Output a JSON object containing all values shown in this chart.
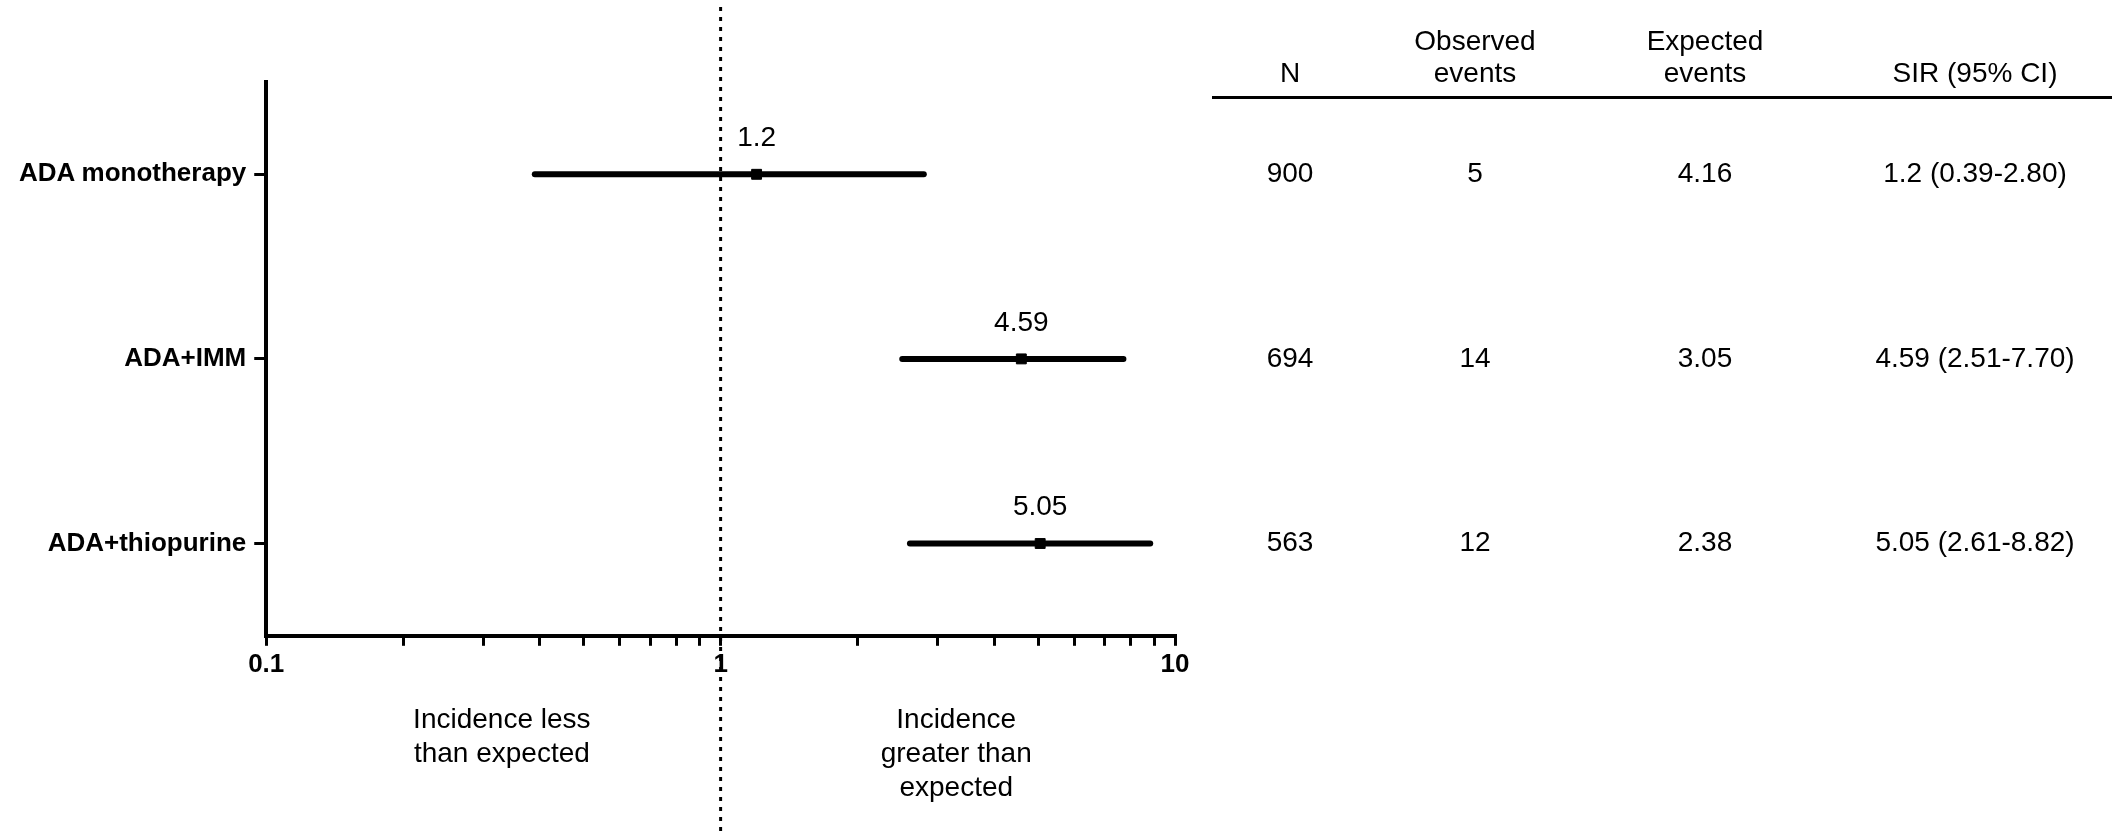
{
  "chart_data": {
    "type": "scatter",
    "orientation": "horizontal",
    "log": "x",
    "categories": [
      "ADA monotherapy",
      "ADA+IMM",
      "ADA+thiopurine"
    ],
    "series": [
      {
        "color": "#000000",
        "values": [
          1.2,
          4.59,
          5.05
        ],
        "errors": [
          [
            0.39,
            2.8
          ],
          [
            2.51,
            7.7
          ],
          [
            2.61,
            8.82
          ]
        ]
      }
    ],
    "xlim": [
      0.1,
      10
    ],
    "xticks": [
      0.1,
      {
        "value": 0.2,
        "label": null
      },
      {
        "value": 0.3,
        "label": null
      },
      {
        "value": 0.4,
        "label": null
      },
      {
        "value": 0.5,
        "label": null
      },
      {
        "value": 0.6,
        "label": null
      },
      {
        "value": 0.7,
        "label": null
      },
      {
        "value": 0.8,
        "label": null
      },
      {
        "value": 0.9,
        "label": null
      },
      1,
      {
        "value": 2,
        "label": null
      },
      {
        "value": 3,
        "label": null
      },
      {
        "value": 4,
        "label": null
      },
      {
        "value": 5,
        "label": null
      },
      {
        "value": 6,
        "label": null
      },
      {
        "value": 7,
        "label": null
      },
      {
        "value": 8,
        "label": null
      },
      {
        "value": 9,
        "label": null
      },
      10
    ],
    "ref_lines": [
      {
        "axis": "x",
        "value": 1,
        "line_style": "dotted",
        "color": "#000000"
      }
    ],
    "data_labels": true,
    "marker": "square",
    "legend": false,
    "annotations": [
      "Incidence less than expected",
      "Incidence greater than expected",
      "N",
      "Observed events",
      "Expected events",
      "SIR (95% CI)",
      "900",
      "5",
      "4.16",
      "1.2 (0.39-2.80)",
      "694",
      "14",
      "3.05",
      "4.59 (2.51-7.70)",
      "563",
      "12",
      "2.38",
      "5.05 (2.61-8.82)"
    ]
  }
}
